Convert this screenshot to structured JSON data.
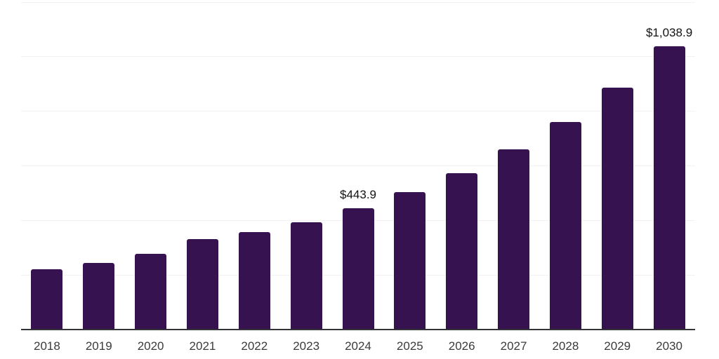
{
  "style": {
    "bar_color": "#361250",
    "axis_line_color": "#333438",
    "gridline_color": "#f3f1f4",
    "tick_label_color": "#3b3b3d",
    "data_label_color": "#121212",
    "background_color": "#ffffff"
  },
  "chart_data": {
    "type": "bar",
    "categories": [
      "2018",
      "2019",
      "2020",
      "2021",
      "2022",
      "2023",
      "2024",
      "2025",
      "2026",
      "2027",
      "2028",
      "2029",
      "2030"
    ],
    "values": [
      220.2,
      243.4,
      277.5,
      330.7,
      358.0,
      394.0,
      443.9,
      502.9,
      573.8,
      659.6,
      760.6,
      886.5,
      1038.9
    ],
    "data_labels": [
      "",
      "",
      "",
      "",
      "",
      "",
      "$443.9",
      "",
      "",
      "",
      "",
      "",
      "$1,038.9"
    ],
    "title": "",
    "xlabel": "",
    "ylabel": "",
    "ylim": [
      0,
      1200
    ],
    "gridline_values": [
      200,
      400,
      600,
      800,
      1000,
      1200
    ],
    "grid": true,
    "legend": false
  }
}
